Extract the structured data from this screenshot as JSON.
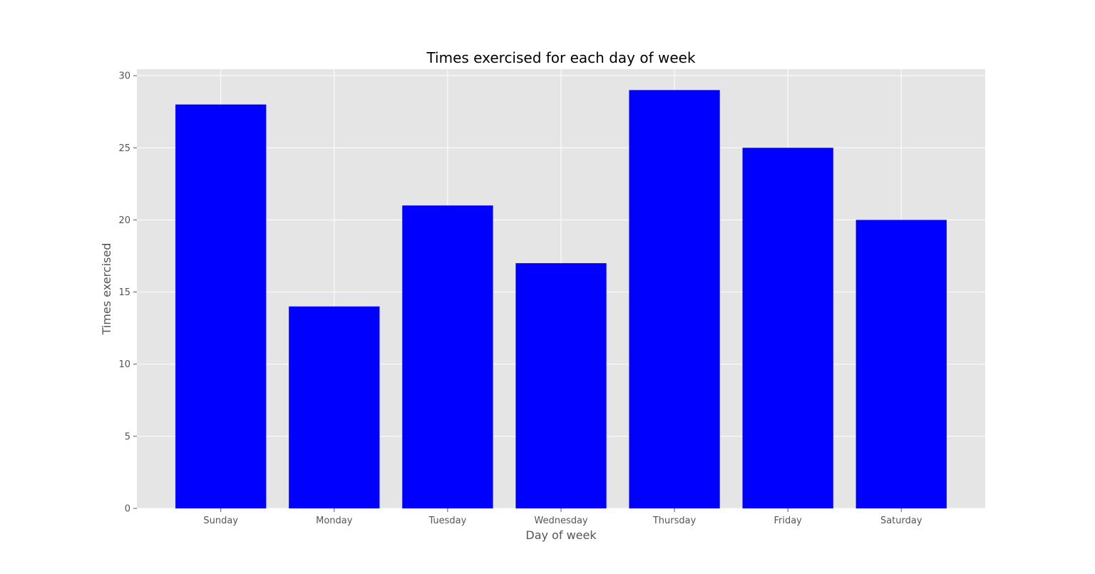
{
  "chart_data": {
    "type": "bar",
    "title": "Times exercised for each day of week",
    "xlabel": "Day of week",
    "ylabel": "Times exercised",
    "categories": [
      "Sunday",
      "Monday",
      "Tuesday",
      "Wednesday",
      "Thursday",
      "Friday",
      "Saturday"
    ],
    "values": [
      28,
      14,
      21,
      17,
      29,
      25,
      20
    ],
    "ylim": [
      0,
      30.45
    ],
    "yticks": [
      0,
      5,
      10,
      15,
      20,
      25,
      30
    ],
    "grid": true,
    "legend": "none",
    "style": "ggplot",
    "colors": {
      "bar": "#0000ff",
      "plot_background": "#e5e5e5",
      "grid": "#ffffff",
      "tick_text": "#555555",
      "title_text": "#000000"
    }
  }
}
